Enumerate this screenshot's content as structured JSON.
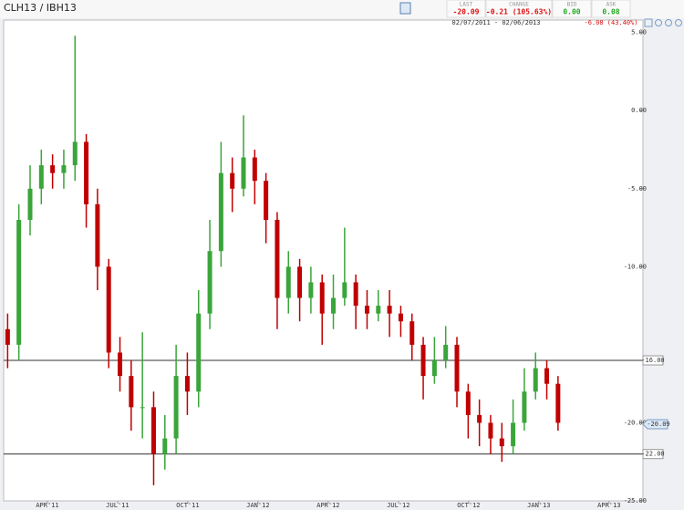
{
  "chart_data": {
    "type": "candlestick",
    "title": "CLH13 / IBH13",
    "quotes": [
      {
        "label": "LAST",
        "value": "-20.09",
        "color": "#d11"
      },
      {
        "label": "CHANGE",
        "value": "-0.21 (105.63%)",
        "color": "#d11"
      },
      {
        "label": "BID",
        "value": "0.00",
        "color": "#2a2"
      },
      {
        "label": "ASK",
        "value": "0.08",
        "color": "#2a2"
      }
    ],
    "range": "02/07/2011 - 02/06/2013",
    "range_change": "-6.08 (43.40%)",
    "x": [
      1.3,
      1.78,
      2.26,
      2.74,
      3.22,
      3.7,
      4.18,
      4.66,
      5.14,
      5.62,
      6.1,
      6.58,
      7.06,
      7.54,
      8.02,
      8.5,
      8.98,
      9.46,
      9.94,
      10.42,
      10.9,
      11.38,
      11.86,
      12.34,
      12.82,
      13.3,
      13.78,
      14.26,
      14.74,
      15.22,
      15.7,
      16.18,
      16.66,
      17.14,
      17.62,
      18.1,
      18.58,
      19.06,
      19.54,
      20.02,
      20.5,
      20.98,
      21.46,
      21.94,
      22.42,
      22.9,
      23.38,
      23.86,
      24.34,
      24.82
    ],
    "open": [
      -14,
      -15,
      -7,
      -5,
      -3.5,
      -4,
      -3.5,
      -2,
      -6,
      -10,
      -15.5,
      -17,
      -19,
      -19,
      -22,
      -21,
      -17,
      -18,
      -13,
      -9,
      -4,
      -5,
      -3,
      -4.5,
      -7,
      -12,
      -10,
      -12,
      -11,
      -13,
      -12,
      -11,
      -12.5,
      -13,
      -12.5,
      -13,
      -13.5,
      -15,
      -17,
      -16,
      -15,
      -18,
      -19.5,
      -20,
      -21,
      -21.5,
      -20,
      -18,
      -16.5,
      -17.5
    ],
    "high": [
      -13,
      -6,
      -3.5,
      -2.5,
      -2.8,
      -2.5,
      4.8,
      -1.5,
      -5,
      -9.5,
      -14.5,
      -16,
      -14.2,
      -18,
      -19.5,
      -15,
      -15.5,
      -11.5,
      -7,
      -2,
      -3,
      -0.3,
      -2.5,
      -4,
      -6.5,
      -9,
      -9.5,
      -10,
      -10.5,
      -10.5,
      -7.5,
      -10.5,
      -11.5,
      -11.5,
      -11.5,
      -12.5,
      -13,
      -14.5,
      -14.5,
      -13.8,
      -14.5,
      -17.5,
      -18.5,
      -19.5,
      -20,
      -18.5,
      -16.5,
      -15.5,
      -16,
      -17
    ],
    "low": [
      -16.5,
      -16,
      -8,
      -6,
      -5,
      -5,
      -4.5,
      -7.5,
      -11.5,
      -16.5,
      -18,
      -20.5,
      -21,
      -24,
      -23,
      -22,
      -19.5,
      -19,
      -14,
      -10,
      -6.5,
      -5.5,
      -6,
      -8.5,
      -14,
      -13,
      -13.5,
      -13,
      -15,
      -14,
      -12.5,
      -14,
      -14,
      -13.5,
      -14.5,
      -14.5,
      -16,
      -18.5,
      -17.5,
      -16.5,
      -19,
      -21,
      -21.5,
      -22,
      -22.5,
      -22,
      -20.5,
      -18.5,
      -18.5,
      -20.5
    ],
    "close": [
      -15,
      -7,
      -5,
      -3.5,
      -4,
      -3.5,
      -2,
      -6,
      -10,
      -15.5,
      -17,
      -19,
      -19,
      -22,
      -21,
      -17,
      -18,
      -13,
      -9,
      -4,
      -5,
      -3,
      -4.5,
      -7,
      -12,
      -10,
      -12,
      -11,
      -13,
      -12,
      -11,
      -12.5,
      -13,
      -12.5,
      -13,
      -13.5,
      -15,
      -17,
      -16,
      -15,
      -18,
      -19.5,
      -20,
      -21,
      -21.5,
      -20,
      -18,
      -16.5,
      -17.5,
      -20
    ],
    "up_color": "#3aa53a",
    "down_color": "#c00000",
    "xlim": [
      1.13,
      28.45
    ],
    "xticks": [
      {
        "value": 3,
        "label": "APR'11"
      },
      {
        "value": 6,
        "label": "JUL'11"
      },
      {
        "value": 9,
        "label": "OCT'11"
      },
      {
        "value": 12,
        "label": "JAN'12"
      },
      {
        "value": 15,
        "label": "APR'12"
      },
      {
        "value": 18,
        "label": "JUL'12"
      },
      {
        "value": 21,
        "label": "OCT'12"
      },
      {
        "value": 24,
        "label": "JAN'13"
      },
      {
        "value": 27,
        "label": "APR'13"
      }
    ],
    "ylim": [
      -25,
      5.8
    ],
    "yticks": [
      {
        "value": 5,
        "label": "5.00"
      },
      {
        "value": 0,
        "label": "0.00"
      },
      {
        "value": -5,
        "label": "-5.00"
      },
      {
        "value": -10,
        "label": "-10.00"
      },
      {
        "value": -20,
        "label": "-20.00"
      },
      {
        "value": -25,
        "label": "-25.00"
      }
    ],
    "ref_lines": [
      {
        "value": -16,
        "label": "-16.00"
      },
      {
        "value": -22,
        "label": "-22.00"
      }
    ],
    "last_marker": {
      "value": -20.09,
      "label": "-20.09"
    }
  }
}
